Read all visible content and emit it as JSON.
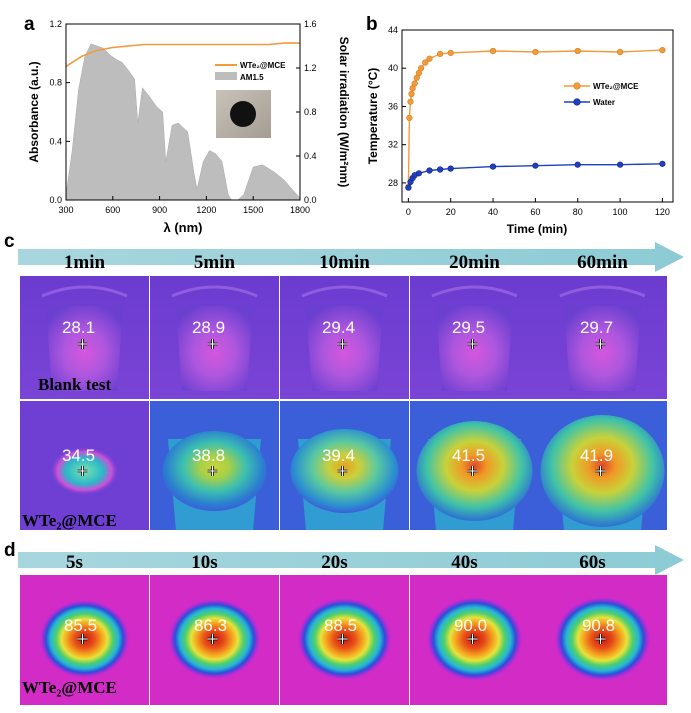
{
  "panels": {
    "a": {
      "letter": "a",
      "chart_data": {
        "type": "area",
        "xlabel": "λ (nm)",
        "ylabel": "Absorbance (a.u.)",
        "y2label": "Solar irradiation (W/m²nm)",
        "xlim": [
          300,
          1800
        ],
        "ylim": [
          0,
          1.2
        ],
        "y2lim": [
          0,
          1.6
        ],
        "xticks": [
          300,
          600,
          900,
          1200,
          1500,
          1800
        ],
        "yticks": [
          0,
          0.4,
          0.8,
          1.2
        ],
        "y2ticks": [
          0,
          0.4,
          0.8,
          1.2,
          1.6
        ],
        "legend_position": "top-right",
        "series": [
          {
            "name": "WTe₂@MCE",
            "axis": "left",
            "color": "#f39a3b",
            "x": [
              300,
              400,
              500,
              600,
              700,
              800,
              900,
              1000,
              1100,
              1200,
              1300,
              1400,
              1500,
              1600,
              1700,
              1800
            ],
            "y": [
              0.91,
              0.98,
              1.02,
              1.04,
              1.05,
              1.06,
              1.06,
              1.06,
              1.06,
              1.06,
              1.06,
              1.06,
              1.06,
              1.06,
              1.07,
              1.07
            ]
          },
          {
            "name": "AM1.5",
            "axis": "right",
            "color": "#bdbdbd",
            "x": [
              300,
              340,
              380,
              420,
              460,
              500,
              540,
              580,
              620,
              660,
              700,
              740,
              760,
              790,
              830,
              880,
              920,
              940,
              980,
              1020,
              1080,
              1120,
              1140,
              1180,
              1220,
              1260,
              1300,
              1340,
              1360,
              1400,
              1440,
              1500,
              1560,
              1640,
              1700,
              1760,
              1800
            ],
            "y": [
              0.05,
              0.45,
              1.0,
              1.3,
              1.42,
              1.4,
              1.38,
              1.32,
              1.28,
              1.25,
              1.18,
              1.1,
              0.7,
              1.02,
              0.95,
              0.85,
              0.8,
              0.35,
              0.68,
              0.7,
              0.62,
              0.25,
              0.1,
              0.35,
              0.45,
              0.42,
              0.35,
              0.05,
              0.0,
              0.0,
              0.05,
              0.3,
              0.32,
              0.25,
              0.18,
              0.08,
              0.02
            ]
          }
        ]
      }
    },
    "b": {
      "letter": "b",
      "chart_data": {
        "type": "line",
        "xlabel": "Time (min)",
        "ylabel": "Temperature (°C)",
        "xlim": [
          -3,
          125
        ],
        "ylim": [
          26,
          44
        ],
        "xticks": [
          0,
          20,
          40,
          60,
          80,
          100,
          120
        ],
        "yticks": [
          28,
          32,
          36,
          40,
          44
        ],
        "legend_position": "center-right",
        "series": [
          {
            "name": "WTe₂@MCE",
            "color": "#f39a3b",
            "x": [
              0,
              0.5,
              1,
              1.5,
              2,
              3,
              4,
              5,
              6,
              8,
              10,
              15,
              20,
              40,
              60,
              80,
              100,
              120
            ],
            "y": [
              27.6,
              34.8,
              36.5,
              37.3,
              37.9,
              38.4,
              39.0,
              39.5,
              40.0,
              40.6,
              41.0,
              41.5,
              41.6,
              41.8,
              41.7,
              41.8,
              41.7,
              41.9
            ]
          },
          {
            "name": "Water",
            "color": "#1f3fbf",
            "x": [
              0,
              1,
              2,
              3,
              5,
              10,
              15,
              20,
              40,
              60,
              80,
              100,
              120
            ],
            "y": [
              27.5,
              28.1,
              28.5,
              28.8,
              29.0,
              29.3,
              29.4,
              29.5,
              29.7,
              29.8,
              29.9,
              29.9,
              30.0
            ]
          }
        ]
      }
    },
    "c": {
      "letter": "c",
      "times": [
        "1min",
        "5min",
        "10min",
        "20min",
        "60min"
      ],
      "rows": [
        {
          "label": "Blank test",
          "values": [
            "28.1",
            "28.9",
            "29.4",
            "29.5",
            "29.7"
          ]
        },
        {
          "label": "WTe₂@MCE",
          "values": [
            "34.5",
            "38.8",
            "39.4",
            "41.5",
            "41.9"
          ]
        }
      ]
    },
    "d": {
      "letter": "d",
      "times": [
        "5s",
        "10s",
        "20s",
        "40s",
        "60s"
      ],
      "row": {
        "label": "WTe₂@MCE",
        "values": [
          "85.5",
          "86.3",
          "88.5",
          "90.0",
          "90.8"
        ]
      }
    }
  }
}
